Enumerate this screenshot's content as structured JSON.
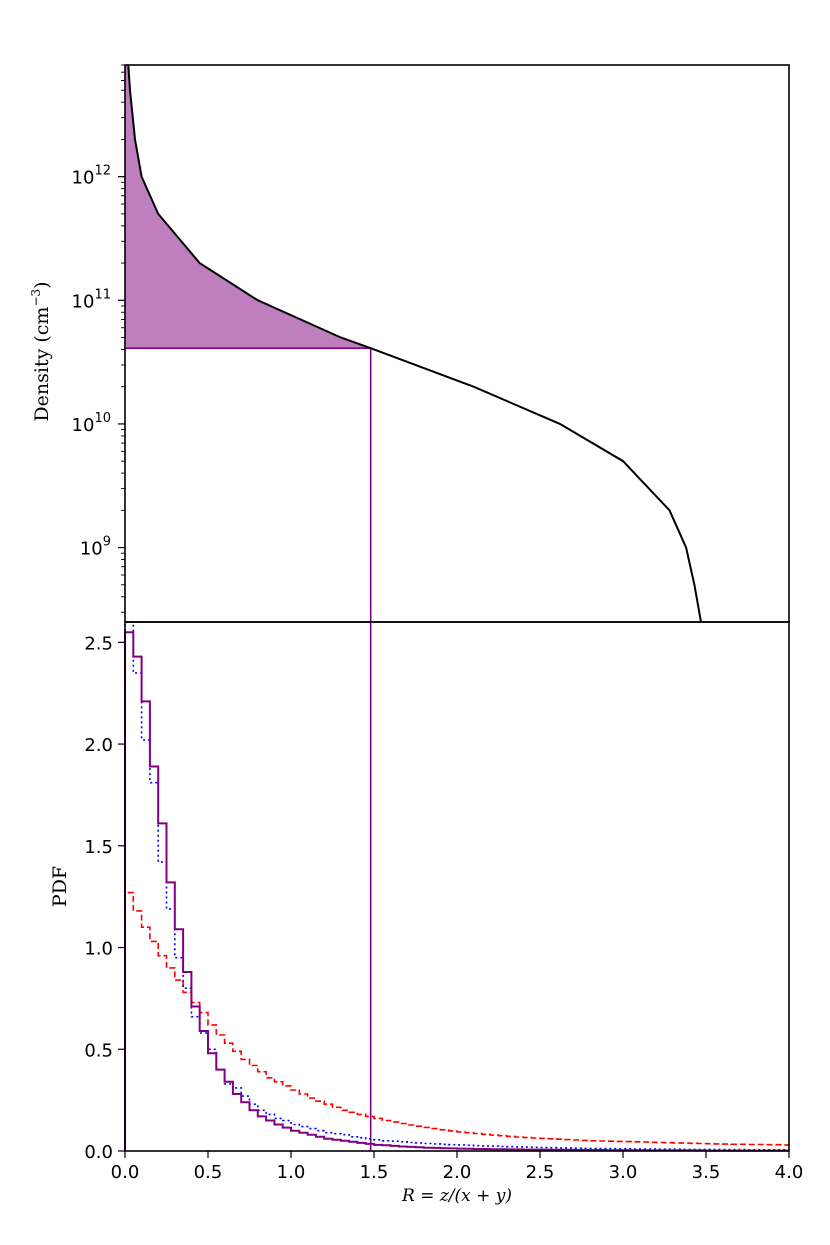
{
  "chart_data": [
    {
      "type": "line",
      "ylabel": "Density (cm",
      "ylabel_sup": "−3",
      "ylabel_close": ")",
      "yscale": "log",
      "ylim": [
        250000000,
        8000000000000
      ],
      "xlim": [
        0,
        4
      ],
      "yticks": [
        {
          "value": 1000000000,
          "base": "10",
          "exp": "9"
        },
        {
          "value": 10000000000,
          "base": "10",
          "exp": "10"
        },
        {
          "value": 100000000000,
          "base": "10",
          "exp": "11"
        },
        {
          "value": 1000000000000,
          "base": "10",
          "exp": "12"
        }
      ],
      "series": [
        {
          "color": "#000000",
          "x": [
            0.02,
            0.03,
            0.06,
            0.1,
            0.2,
            0.45,
            0.8,
            1.3,
            1.48,
            2.1,
            2.62,
            3.0,
            3.28,
            3.38,
            3.43,
            3.47
          ],
          "y": [
            8000000000000,
            5000000000000,
            2000000000000,
            1000000000000,
            500000000000,
            200000000000,
            100000000000,
            50000000000,
            41000000000,
            20000000000,
            10000000000,
            5000000000,
            2000000000,
            1000000000,
            500000000,
            250000000
          ]
        }
      ],
      "shaded_region": {
        "color": "#bf7fbf",
        "x_max": 1.48,
        "y_min": 41000000000
      },
      "reference_lines": {
        "color": "#800080",
        "x": 1.48,
        "y": 41000000000
      }
    },
    {
      "type": "histogram",
      "ylabel": "PDF",
      "xlabel": "R = z/(x + y)",
      "xlim": [
        0,
        4
      ],
      "ylim": [
        0,
        2.6
      ],
      "xticks": [
        "0.0",
        "0.5",
        "1.0",
        "1.5",
        "2.0",
        "2.5",
        "3.0",
        "3.5",
        "4.0"
      ],
      "yticks": [
        "0.0",
        "0.5",
        "1.0",
        "1.5",
        "2.0",
        "2.5"
      ],
      "bin_width": 0.05,
      "series": [
        {
          "color": "#800080",
          "style": "solid",
          "values": [
            2.55,
            2.43,
            2.21,
            1.89,
            1.61,
            1.32,
            1.09,
            0.88,
            0.71,
            0.59,
            0.48,
            0.4,
            0.34,
            0.28,
            0.24,
            0.2,
            0.17,
            0.15,
            0.13,
            0.115,
            0.1,
            0.09,
            0.08,
            0.07,
            0.06,
            0.055,
            0.05,
            0.045,
            0.04,
            0.035,
            0.03,
            0.028,
            0.025,
            0.022,
            0.02,
            0.018,
            0.016,
            0.015,
            0.014,
            0.013,
            0.012,
            0.011,
            0.01,
            0.01,
            0.009,
            0.009,
            0.008,
            0.008,
            0.007,
            0.007,
            0.007,
            0.006,
            0.006,
            0.006,
            0.005,
            0.005,
            0.005,
            0.005,
            0.004,
            0.004,
            0.004,
            0.004,
            0.004,
            0.003,
            0.003,
            0.003,
            0.003,
            0.003,
            0.003,
            0.003,
            0.002,
            0.002,
            0.002,
            0.002,
            0.002,
            0.002,
            0.002,
            0.002,
            0.002,
            0.002
          ]
        },
        {
          "color": "#0000ff",
          "style": "dotted",
          "values": [
            2.6,
            2.35,
            2.02,
            1.81,
            1.42,
            1.19,
            0.95,
            0.8,
            0.66,
            0.58,
            0.5,
            0.4,
            0.33,
            0.31,
            0.27,
            0.23,
            0.2,
            0.18,
            0.16,
            0.15,
            0.13,
            0.12,
            0.11,
            0.1,
            0.09,
            0.085,
            0.08,
            0.07,
            0.065,
            0.06,
            0.055,
            0.05,
            0.048,
            0.045,
            0.042,
            0.04,
            0.037,
            0.035,
            0.033,
            0.031,
            0.03,
            0.028,
            0.026,
            0.025,
            0.024,
            0.022,
            0.021,
            0.02,
            0.019,
            0.018,
            0.017,
            0.016,
            0.015,
            0.015,
            0.014,
            0.013,
            0.013,
            0.012,
            0.012,
            0.011,
            0.011,
            0.01,
            0.01,
            0.01,
            0.009,
            0.009,
            0.009,
            0.008,
            0.008,
            0.008,
            0.008,
            0.007,
            0.007,
            0.007,
            0.007,
            0.006,
            0.006,
            0.006,
            0.006,
            0.006
          ]
        },
        {
          "color": "#ff0000",
          "style": "dashed",
          "values": [
            1.27,
            1.18,
            1.1,
            1.03,
            0.96,
            0.9,
            0.84,
            0.78,
            0.73,
            0.68,
            0.62,
            0.57,
            0.53,
            0.49,
            0.45,
            0.42,
            0.39,
            0.36,
            0.34,
            0.32,
            0.3,
            0.28,
            0.26,
            0.245,
            0.23,
            0.215,
            0.2,
            0.19,
            0.18,
            0.17,
            0.16,
            0.15,
            0.142,
            0.135,
            0.128,
            0.122,
            0.116,
            0.11,
            0.104,
            0.099,
            0.094,
            0.09,
            0.086,
            0.082,
            0.078,
            0.075,
            0.072,
            0.069,
            0.066,
            0.064,
            0.062,
            0.06,
            0.058,
            0.056,
            0.054,
            0.052,
            0.05,
            0.049,
            0.048,
            0.047,
            0.046,
            0.045,
            0.044,
            0.043,
            0.042,
            0.041,
            0.04,
            0.039,
            0.038,
            0.037,
            0.036,
            0.035,
            0.034,
            0.033,
            0.033,
            0.032,
            0.032,
            0.031,
            0.031,
            0.03
          ]
        }
      ],
      "reference_lines": {
        "color": "#800080",
        "x": 1.48
      }
    }
  ]
}
